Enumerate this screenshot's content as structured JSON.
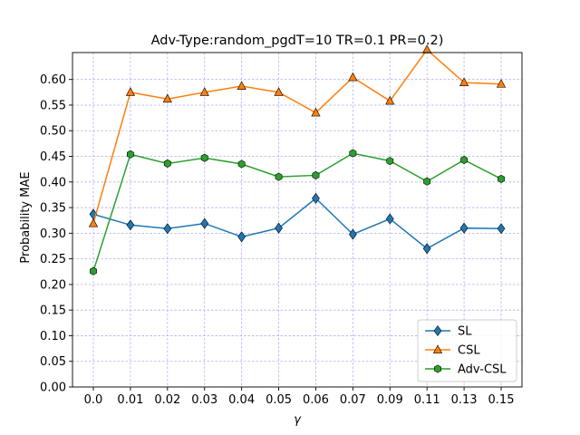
{
  "chart_data": {
    "type": "line",
    "title": "Adv-Type:random_pgdT=10 TR=0.1 PR=0.2)",
    "xlabel": "γ",
    "ylabel": "Probability MAE",
    "categories": [
      "0.0",
      "0.01",
      "0.02",
      "0.03",
      "0.04",
      "0.05",
      "0.06",
      "0.07",
      "0.09",
      "0.11",
      "0.13",
      "0.15"
    ],
    "ylim": [
      0.0,
      0.6525
    ],
    "yticks": [
      "0.00",
      "0.05",
      "0.10",
      "0.15",
      "0.20",
      "0.25",
      "0.30",
      "0.35",
      "0.40",
      "0.45",
      "0.50",
      "0.55",
      "0.60"
    ],
    "grid": true,
    "legend_position": "lower right",
    "series": [
      {
        "name": "SL",
        "color": "#1f77b4",
        "marker": "diamond",
        "values": [
          0.337,
          0.316,
          0.309,
          0.319,
          0.293,
          0.31,
          0.368,
          0.298,
          0.328,
          0.27,
          0.31,
          0.309
        ]
      },
      {
        "name": "CSL",
        "color": "#ff7f0e",
        "marker": "triangle",
        "values": [
          0.319,
          0.575,
          0.562,
          0.575,
          0.587,
          0.575,
          0.535,
          0.604,
          0.558,
          0.658,
          0.594,
          0.591
        ]
      },
      {
        "name": "Adv-CSL",
        "color": "#2ca02c",
        "marker": "hexagon",
        "values": [
          0.226,
          0.454,
          0.436,
          0.447,
          0.435,
          0.41,
          0.413,
          0.456,
          0.441,
          0.401,
          0.443,
          0.406
        ]
      }
    ]
  }
}
